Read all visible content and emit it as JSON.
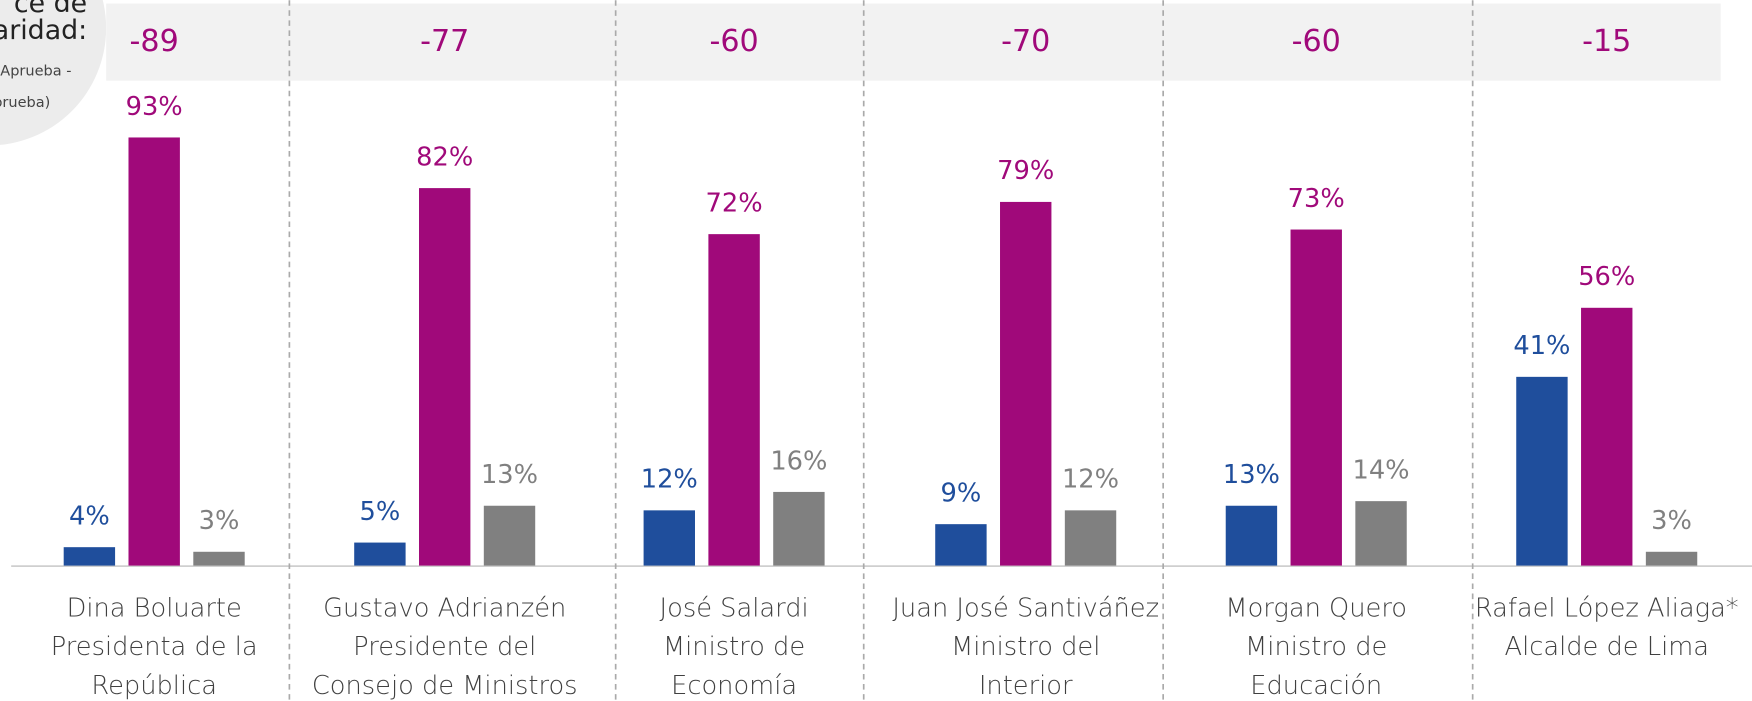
{
  "chart_data": {
    "type": "bar",
    "panel_label": [
      "ce de",
      "aridad:"
    ],
    "panel_note": [
      "Aprueba -",
      "prueba)"
    ],
    "index_values": [
      -89,
      -77,
      -60,
      -70,
      -60,
      -15
    ],
    "index_color": "#a0097a",
    "categories": [
      [
        "Dina Boluarte",
        "Presidenta de la",
        "República"
      ],
      [
        "Gustavo Adrianzén",
        "Presidente del",
        "Consejo de Ministros"
      ],
      [
        "José Salardi",
        "Ministro de",
        "Economía"
      ],
      [
        "Juan José Santiváñez",
        "Ministro del",
        "Interior"
      ],
      [
        "Morgan Quero",
        "Ministro de",
        "Educación"
      ],
      [
        "Rafael López Aliaga*",
        "Alcalde de Lima"
      ]
    ],
    "series": [
      {
        "color": "#1f4e9c",
        "values": [
          4,
          5,
          12,
          9,
          13,
          41
        ],
        "value_labels": [
          "4%",
          "5%",
          "12%",
          "9%",
          "13%",
          "41%"
        ]
      },
      {
        "color": "#a0097a",
        "values": [
          93,
          82,
          72,
          79,
          73,
          56
        ],
        "value_labels": [
          "93%",
          "82%",
          "72%",
          "79%",
          "73%",
          "56%"
        ]
      },
      {
        "color": "#808080",
        "values": [
          3,
          13,
          16,
          12,
          14,
          3
        ],
        "value_labels": [
          "3%",
          "13%",
          "16%",
          "12%",
          "14%",
          "3%"
        ]
      }
    ]
  }
}
